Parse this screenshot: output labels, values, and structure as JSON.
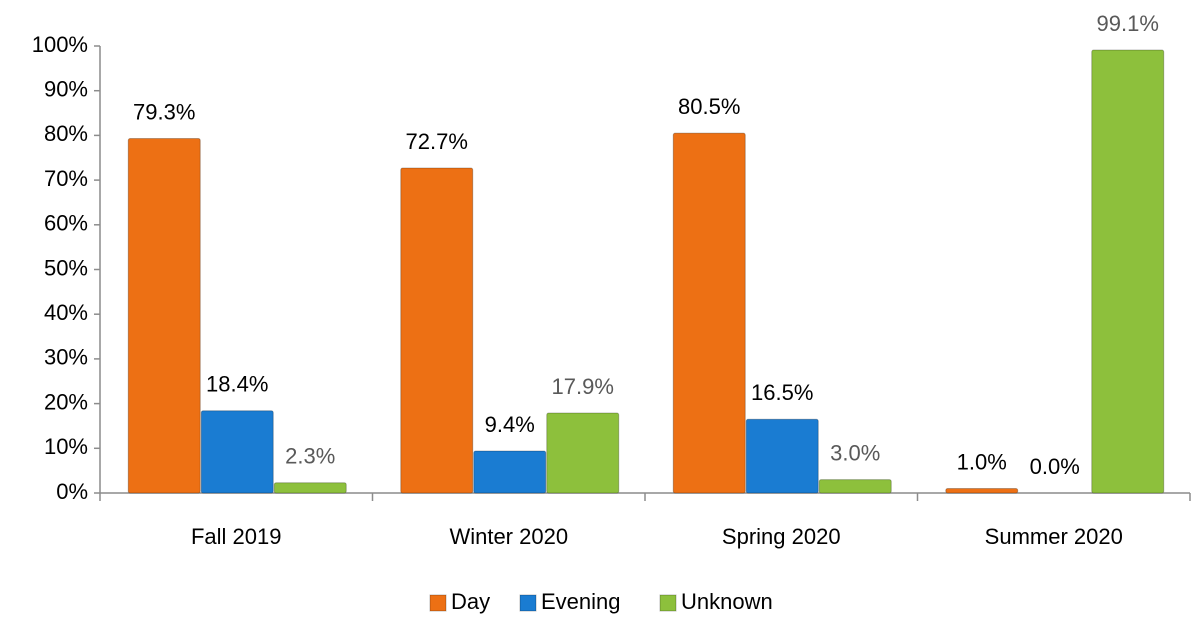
{
  "chart_data": {
    "type": "bar",
    "categories": [
      "Fall 2019",
      "Winter 2020",
      "Spring 2020",
      "Summer 2020"
    ],
    "series": [
      {
        "name": "Day",
        "color": "#ed7014",
        "label_color": "#000000",
        "values": [
          79.3,
          72.7,
          80.5,
          1.0
        ],
        "value_labels": [
          "79.3%",
          "72.7%",
          "80.5%",
          "1.0%"
        ]
      },
      {
        "name": "Evening",
        "color": "#1a7cd2",
        "label_color": "#000000",
        "values": [
          18.4,
          9.4,
          16.5,
          0.0
        ],
        "value_labels": [
          "18.4%",
          "9.4%",
          "16.5%",
          "0.0%"
        ]
      },
      {
        "name": "Unknown",
        "color": "#8dc03c",
        "label_color": "#595959",
        "values": [
          2.3,
          17.9,
          3.0,
          99.1
        ],
        "value_labels": [
          "2.3%",
          "17.9%",
          "3.0%",
          "99.1%"
        ]
      }
    ],
    "ylim": [
      0,
      100
    ],
    "yticks": [
      {
        "value": 0,
        "label": "0%"
      },
      {
        "value": 10,
        "label": "10%"
      },
      {
        "value": 20,
        "label": "20%"
      },
      {
        "value": 30,
        "label": "30%"
      },
      {
        "value": 40,
        "label": "40%"
      },
      {
        "value": 50,
        "label": "50%"
      },
      {
        "value": 60,
        "label": "60%"
      },
      {
        "value": 70,
        "label": "70%"
      },
      {
        "value": 80,
        "label": "80%"
      },
      {
        "value": 90,
        "label": "90%"
      },
      {
        "value": 100,
        "label": "100%"
      }
    ],
    "grid": false,
    "legend": "bottom"
  }
}
